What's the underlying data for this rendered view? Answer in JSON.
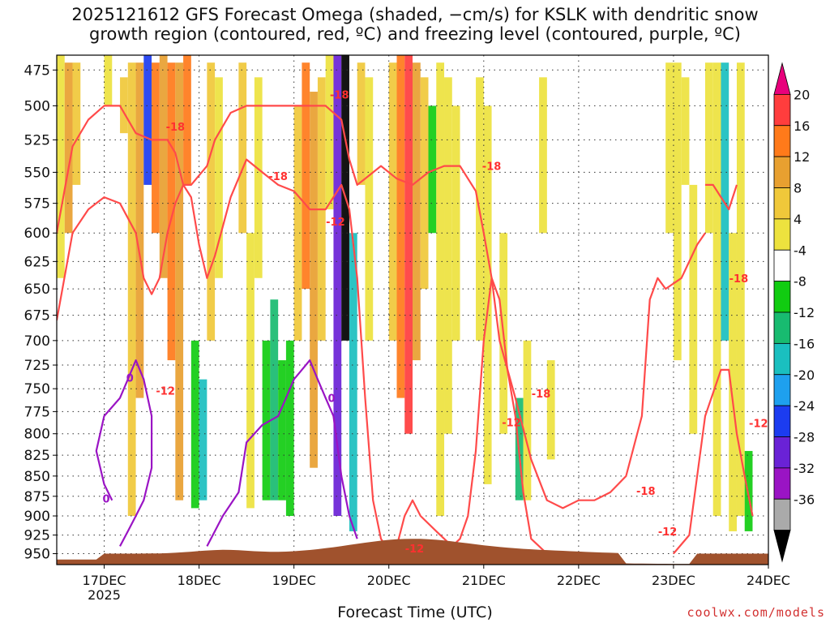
{
  "title": "2025121612 GFS Forecast Omega (shaded, −cm/s) for KSLK with dendritic snow\ngrowth region (contoured, red, ºC) and freezing level (contoured, purple, ºC)",
  "credit": "coolwx.com/models",
  "chart_data": {
    "type": "heatmap",
    "title": "2025121612 GFS Forecast Omega (shaded, −cm/s) for KSLK with dendritic snow growth region (contoured, red, ºC) and freezing level (contoured, purple, ºC)",
    "xlabel": "Forecast Time (UTC)",
    "ylabel": "",
    "x_ticks": [
      "17DEC",
      "18DEC",
      "19DEC",
      "20DEC",
      "21DEC",
      "22DEC",
      "23DEC",
      "24DEC"
    ],
    "x_tick_sublabel": "2025",
    "xlim_hours": [
      -12,
      168
    ],
    "y_ticks": [
      475,
      500,
      525,
      550,
      575,
      600,
      625,
      650,
      675,
      700,
      725,
      750,
      775,
      800,
      825,
      850,
      875,
      900,
      925,
      950
    ],
    "ylim": [
      965,
      465
    ],
    "y_scale": "log-pressure",
    "grid": "dotted",
    "colorbar": {
      "placement": "right",
      "levels": [
        "20",
        "16",
        "12",
        "8",
        "4",
        "-4",
        "-8",
        "-12",
        "-16",
        "-20",
        "-24",
        "-28",
        "-32",
        "-36"
      ],
      "colors": [
        "#e8007c",
        "#ff3d3d",
        "#ff7a1a",
        "#e8a030",
        "#f0c83a",
        "#ede23e",
        "#ffffff",
        "#11cc11",
        "#18bb70",
        "#1abfbf",
        "#1ea0ee",
        "#1c3cf0",
        "#6a22d6",
        "#9a14c4",
        "#aaaaaa",
        "#000000"
      ]
    },
    "omega_cells": [
      {
        "t": -12,
        "p0": 465,
        "p1": 640,
        "v": 5
      },
      {
        "t": -10,
        "p0": 470,
        "p1": 600,
        "v": 10
      },
      {
        "t": -8,
        "p0": 470,
        "p1": 560,
        "v": 6
      },
      {
        "t": 0,
        "p0": 465,
        "p1": 500,
        "v": 5
      },
      {
        "t": 4,
        "p0": 480,
        "p1": 520,
        "v": 6
      },
      {
        "t": 6,
        "p0": 470,
        "p1": 900,
        "v": 6
      },
      {
        "t": 8,
        "p0": 470,
        "p1": 760,
        "v": 10
      },
      {
        "t": 10,
        "p0": 465,
        "p1": 560,
        "v": -22
      },
      {
        "t": 12,
        "p0": 470,
        "p1": 600,
        "v": 12
      },
      {
        "t": 14,
        "p0": 465,
        "p1": 640,
        "v": 10
      },
      {
        "t": 16,
        "p0": 470,
        "p1": 720,
        "v": 14
      },
      {
        "t": 18,
        "p0": 470,
        "p1": 880,
        "v": 8
      },
      {
        "t": 20,
        "p0": 465,
        "p1": 560,
        "v": 12
      },
      {
        "t": 22,
        "p0": 700,
        "p1": 890,
        "v": -6
      },
      {
        "t": 24,
        "p0": 740,
        "p1": 880,
        "v": -14
      },
      {
        "t": 26,
        "p0": 470,
        "p1": 700,
        "v": 6
      },
      {
        "t": 28,
        "p0": 480,
        "p1": 640,
        "v": 5
      },
      {
        "t": 34,
        "p0": 470,
        "p1": 600,
        "v": 6
      },
      {
        "t": 36,
        "p0": 600,
        "p1": 890,
        "v": 5
      },
      {
        "t": 38,
        "p0": 480,
        "p1": 640,
        "v": 5
      },
      {
        "t": 40,
        "p0": 700,
        "p1": 880,
        "v": -6
      },
      {
        "t": 42,
        "p0": 660,
        "p1": 880,
        "v": -8
      },
      {
        "t": 44,
        "p0": 720,
        "p1": 880,
        "v": -6
      },
      {
        "t": 46,
        "p0": 700,
        "p1": 900,
        "v": -6
      },
      {
        "t": 48,
        "p0": 500,
        "p1": 700,
        "v": 6
      },
      {
        "t": 50,
        "p0": 470,
        "p1": 650,
        "v": 14
      },
      {
        "t": 52,
        "p0": 490,
        "p1": 840,
        "v": 8
      },
      {
        "t": 54,
        "p0": 480,
        "p1": 700,
        "v": 6
      },
      {
        "t": 56,
        "p0": 465,
        "p1": 580,
        "v": 5
      },
      {
        "t": 58,
        "p0": 465,
        "p1": 900,
        "v": -24
      },
      {
        "t": 60,
        "p0": 465,
        "p1": 700,
        "v": -36
      },
      {
        "t": 62,
        "p0": 600,
        "p1": 920,
        "v": -14
      },
      {
        "t": 64,
        "p0": 470,
        "p1": 560,
        "v": 6
      },
      {
        "t": 66,
        "p0": 480,
        "p1": 700,
        "v": 5
      },
      {
        "t": 72,
        "p0": 470,
        "p1": 700,
        "v": 6
      },
      {
        "t": 74,
        "p0": 465,
        "p1": 760,
        "v": 12
      },
      {
        "t": 76,
        "p0": 465,
        "p1": 800,
        "v": 18
      },
      {
        "t": 78,
        "p0": 470,
        "p1": 720,
        "v": 10
      },
      {
        "t": 80,
        "p0": 480,
        "p1": 650,
        "v": 6
      },
      {
        "t": 82,
        "p0": 500,
        "p1": 600,
        "v": -6
      },
      {
        "t": 84,
        "p0": 470,
        "p1": 900,
        "v": 5
      },
      {
        "t": 86,
        "p0": 480,
        "p1": 800,
        "v": 5
      },
      {
        "t": 88,
        "p0": 500,
        "p1": 700,
        "v": 5
      },
      {
        "t": 94,
        "p0": 480,
        "p1": 700,
        "v": 5
      },
      {
        "t": 96,
        "p0": 500,
        "p1": 860,
        "v": 5
      },
      {
        "t": 100,
        "p0": 600,
        "p1": 800,
        "v": 5
      },
      {
        "t": 104,
        "p0": 760,
        "p1": 880,
        "v": -8
      },
      {
        "t": 106,
        "p0": 700,
        "p1": 880,
        "v": 5
      },
      {
        "t": 110,
        "p0": 480,
        "p1": 600,
        "v": 5
      },
      {
        "t": 112,
        "p0": 720,
        "p1": 830,
        "v": 5
      },
      {
        "t": 142,
        "p0": 470,
        "p1": 600,
        "v": 5
      },
      {
        "t": 144,
        "p0": 470,
        "p1": 720,
        "v": 5
      },
      {
        "t": 146,
        "p0": 480,
        "p1": 560,
        "v": 5
      },
      {
        "t": 148,
        "p0": 560,
        "p1": 800,
        "v": 5
      },
      {
        "t": 152,
        "p0": 470,
        "p1": 600,
        "v": 5
      },
      {
        "t": 154,
        "p0": 470,
        "p1": 900,
        "v": 5
      },
      {
        "t": 156,
        "p0": 470,
        "p1": 700,
        "v": -12
      },
      {
        "t": 158,
        "p0": 600,
        "p1": 920,
        "v": 5
      },
      {
        "t": 160,
        "p0": 470,
        "p1": 900,
        "v": 5
      },
      {
        "t": 162,
        "p0": 820,
        "p1": 920,
        "v": -6
      }
    ],
    "contours": [
      {
        "level": "-12",
        "color": "#ff4a4a",
        "points": [
          [
            -12,
            680
          ],
          [
            -8,
            600
          ],
          [
            -4,
            580
          ],
          [
            0,
            570
          ],
          [
            4,
            575
          ],
          [
            8,
            600
          ],
          [
            10,
            640
          ],
          [
            12,
            655
          ],
          [
            14,
            640
          ],
          [
            16,
            600
          ],
          [
            18,
            575
          ],
          [
            20,
            560
          ],
          [
            22,
            570
          ],
          [
            24,
            610
          ],
          [
            26,
            640
          ],
          [
            28,
            620
          ],
          [
            32,
            570
          ],
          [
            36,
            540
          ],
          [
            40,
            550
          ],
          [
            44,
            560
          ],
          [
            48,
            565
          ],
          [
            52,
            580
          ],
          [
            56,
            580
          ],
          [
            60,
            560
          ],
          [
            62,
            580
          ],
          [
            64,
            640
          ],
          [
            66,
            760
          ],
          [
            68,
            880
          ],
          [
            70,
            930
          ],
          [
            72,
            945
          ],
          [
            74,
            940
          ],
          [
            76,
            900
          ],
          [
            78,
            880
          ],
          [
            80,
            900
          ],
          [
            84,
            920
          ],
          [
            88,
            940
          ],
          [
            90,
            930
          ],
          [
            92,
            900
          ],
          [
            94,
            820
          ],
          [
            96,
            700
          ],
          [
            98,
            640
          ],
          [
            100,
            660
          ],
          [
            102,
            730
          ],
          [
            104,
            780
          ],
          [
            106,
            870
          ],
          [
            108,
            930
          ],
          [
            112,
            950
          ],
          [
            116,
            960
          ]
        ]
      },
      {
        "level": "-12",
        "color": "#ff4a4a",
        "points": [
          [
            144,
            950
          ],
          [
            148,
            925
          ],
          [
            152,
            780
          ],
          [
            156,
            730
          ],
          [
            158,
            730
          ],
          [
            160,
            800
          ],
          [
            162,
            850
          ],
          [
            164,
            900
          ]
        ]
      },
      {
        "level": "-18",
        "color": "#ff4a4a",
        "points": [
          [
            -12,
            600
          ],
          [
            -8,
            530
          ],
          [
            -4,
            510
          ],
          [
            0,
            500
          ],
          [
            4,
            500
          ],
          [
            8,
            520
          ],
          [
            12,
            525
          ],
          [
            16,
            525
          ],
          [
            18,
            535
          ],
          [
            20,
            560
          ],
          [
            22,
            560
          ],
          [
            26,
            545
          ],
          [
            28,
            525
          ],
          [
            32,
            505
          ],
          [
            36,
            500
          ],
          [
            40,
            500
          ],
          [
            44,
            500
          ],
          [
            48,
            500
          ],
          [
            52,
            500
          ],
          [
            56,
            500
          ],
          [
            60,
            510
          ],
          [
            62,
            540
          ],
          [
            64,
            560
          ],
          [
            66,
            555
          ],
          [
            70,
            545
          ],
          [
            74,
            555
          ],
          [
            78,
            560
          ],
          [
            82,
            550
          ],
          [
            86,
            545
          ],
          [
            90,
            545
          ],
          [
            94,
            565
          ],
          [
            96,
            600
          ],
          [
            98,
            640
          ],
          [
            100,
            700
          ],
          [
            104,
            760
          ],
          [
            108,
            830
          ],
          [
            112,
            880
          ],
          [
            116,
            890
          ],
          [
            120,
            880
          ],
          [
            124,
            880
          ],
          [
            128,
            870
          ],
          [
            132,
            850
          ],
          [
            136,
            780
          ],
          [
            138,
            660
          ],
          [
            140,
            640
          ],
          [
            142,
            650
          ],
          [
            146,
            640
          ],
          [
            150,
            610
          ],
          [
            152,
            600
          ]
        ]
      },
      {
        "level": "-18",
        "color": "#ff4a4a",
        "points": [
          [
            152,
            560
          ],
          [
            154,
            560
          ],
          [
            156,
            570
          ],
          [
            158,
            580
          ],
          [
            160,
            560
          ]
        ]
      },
      {
        "level": "0",
        "color": "#9a14c4",
        "points": [
          [
            2,
            880
          ],
          [
            0,
            860
          ],
          [
            -2,
            820
          ],
          [
            0,
            780
          ],
          [
            4,
            760
          ],
          [
            6,
            740
          ],
          [
            8,
            720
          ],
          [
            10,
            740
          ],
          [
            12,
            780
          ],
          [
            12,
            840
          ],
          [
            10,
            880
          ],
          [
            8,
            900
          ],
          [
            6,
            920
          ],
          [
            4,
            940
          ]
        ]
      },
      {
        "level": "0",
        "color": "#9a14c4",
        "points": [
          [
            26,
            940
          ],
          [
            30,
            900
          ],
          [
            34,
            870
          ],
          [
            36,
            810
          ],
          [
            40,
            790
          ],
          [
            44,
            780
          ],
          [
            46,
            760
          ],
          [
            48,
            740
          ],
          [
            50,
            730
          ],
          [
            52,
            720
          ],
          [
            54,
            740
          ],
          [
            56,
            760
          ],
          [
            58,
            780
          ],
          [
            60,
            850
          ],
          [
            62,
            900
          ],
          [
            64,
            930
          ]
        ]
      }
    ],
    "contour_labels": [
      {
        "text": "0",
        "t": 6.5,
        "p": 738
      },
      {
        "text": "0",
        "t": 0.5,
        "p": 878
      },
      {
        "text": "-12",
        "t": 15.5,
        "p": 752
      },
      {
        "text": "-18",
        "t": 18,
        "p": 515
      },
      {
        "text": "-18",
        "t": 44,
        "p": 553
      },
      {
        "text": "-18",
        "t": 59.5,
        "p": 492
      },
      {
        "text": "-12",
        "t": 58.5,
        "p": 590
      },
      {
        "text": "0",
        "t": 57.5,
        "p": 760
      },
      {
        "text": "-18",
        "t": 98,
        "p": 545
      },
      {
        "text": "-12",
        "t": 78.5,
        "p": 943
      },
      {
        "text": "-18",
        "t": 110.5,
        "p": 755
      },
      {
        "text": "-12",
        "t": 103,
        "p": 787
      },
      {
        "text": "-18",
        "t": 160.5,
        "p": 640
      },
      {
        "text": "-12",
        "t": 165.5,
        "p": 788
      },
      {
        "text": "-18",
        "t": 137,
        "p": 868
      },
      {
        "text": "-12",
        "t": 142.5,
        "p": 920
      }
    ],
    "terrain_color": "#a0522d"
  }
}
